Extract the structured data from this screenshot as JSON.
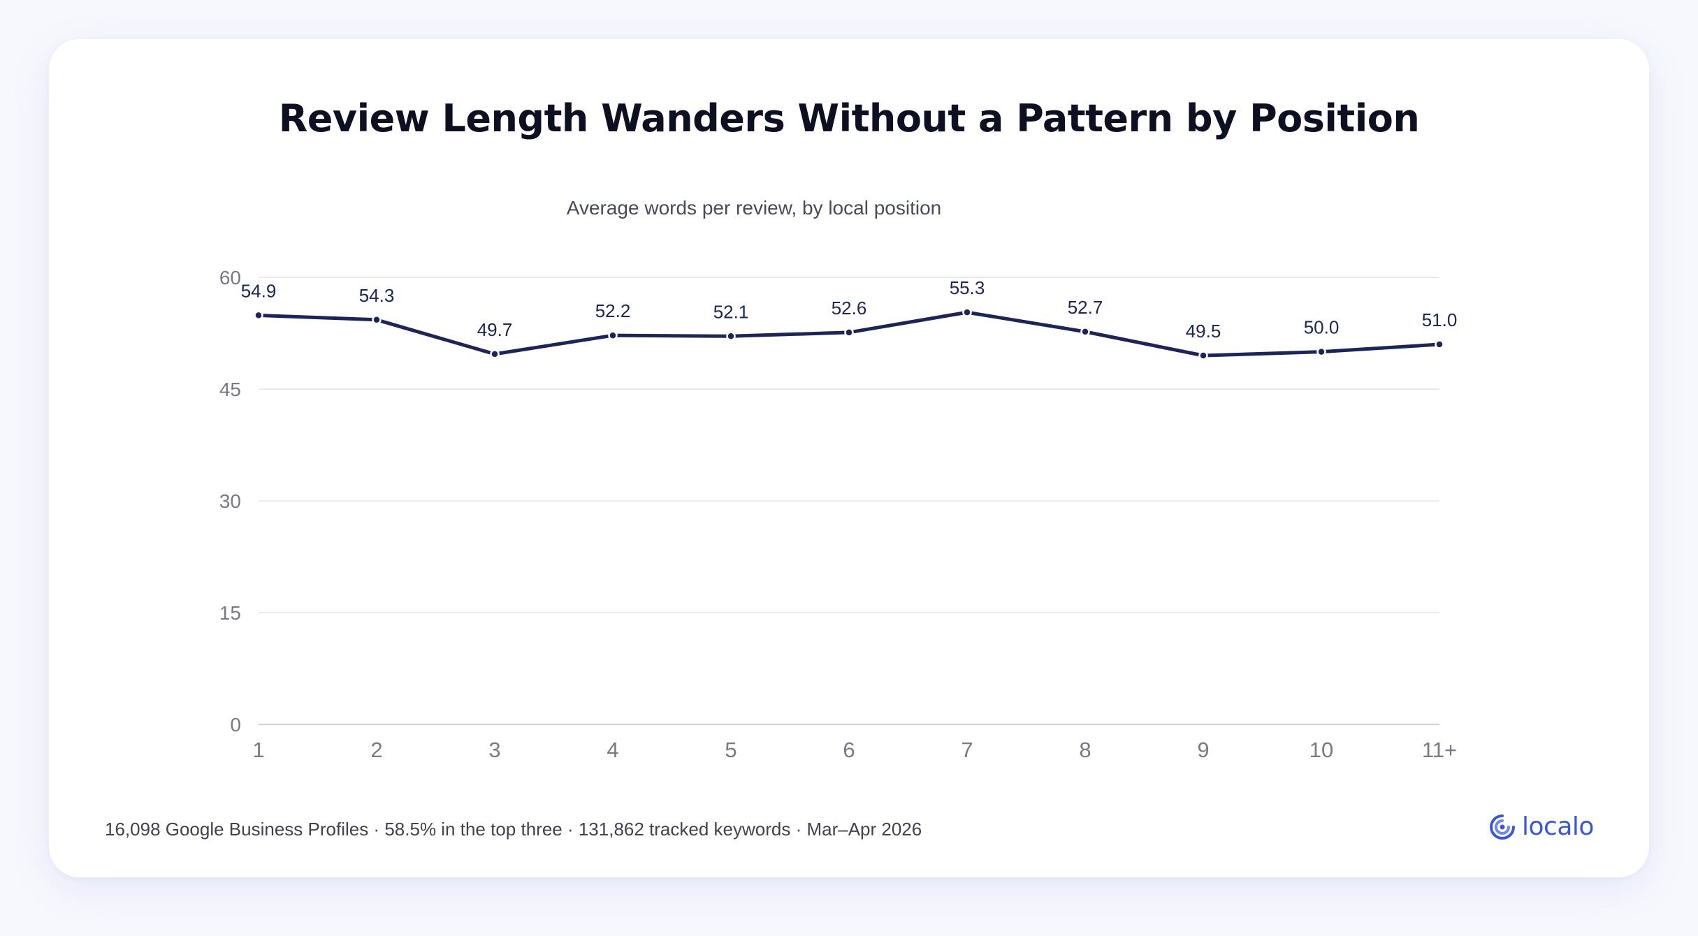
{
  "title": "Review Length Wanders Without a Pattern by Position",
  "subtitle": "Average words per review, by local position",
  "footer": "16,098 Google Business Profiles · 58.5% in the top three · 131,862 tracked keywords · Mar–Apr 2026",
  "brand": {
    "name": "localo",
    "icon": "localo-logo-icon",
    "color": "#3b57d6"
  },
  "colors": {
    "line": "#1b2656",
    "grid": "#e2e3e8",
    "axis_text": "#777a85",
    "label_text": "#1b2656"
  },
  "chart_data": {
    "type": "line",
    "title": "Review Length Wanders Without a Pattern by Position",
    "subtitle": "Average words per review, by local position",
    "xlabel": "",
    "ylabel": "",
    "categories": [
      "1",
      "2",
      "3",
      "4",
      "5",
      "6",
      "7",
      "8",
      "9",
      "10",
      "11+"
    ],
    "series": [
      {
        "values": [
          54.9,
          54.3,
          49.7,
          52.2,
          52.1,
          52.6,
          55.3,
          52.7,
          49.5,
          50.0,
          51.0
        ],
        "labels": [
          "54.9",
          "54.3",
          "49.7",
          "52.2",
          "52.1",
          "52.6",
          "55.3",
          "52.7",
          "49.5",
          "50.0",
          "51.0"
        ]
      }
    ],
    "ylim": [
      0,
      60
    ],
    "yticks": [
      "0",
      "15",
      "30",
      "45",
      "60"
    ],
    "grid": true,
    "legend": "none"
  }
}
